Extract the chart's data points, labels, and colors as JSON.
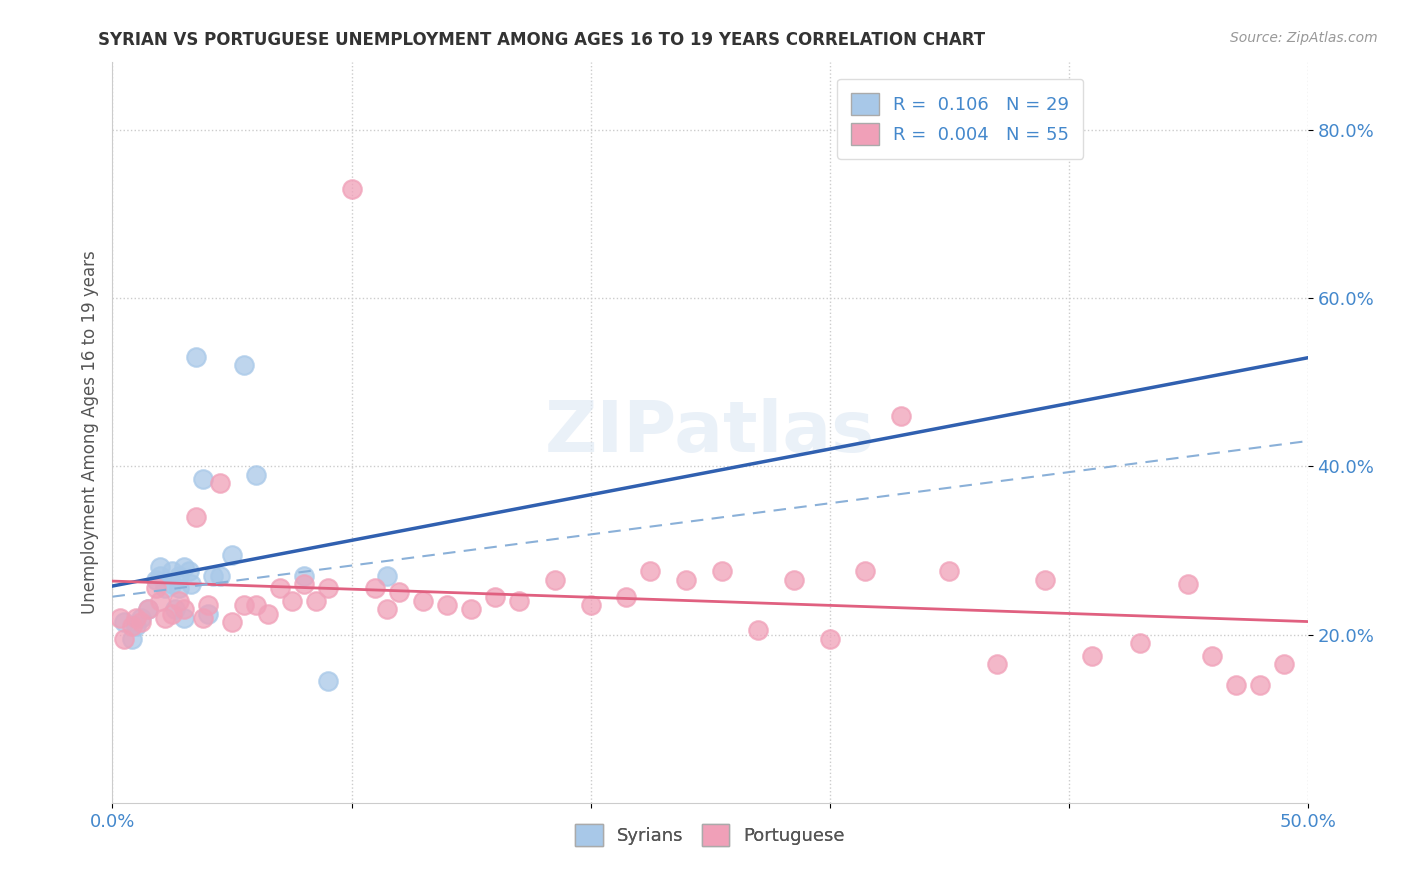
{
  "title": "SYRIAN VS PORTUGUESE UNEMPLOYMENT AMONG AGES 16 TO 19 YEARS CORRELATION CHART",
  "source": "Source: ZipAtlas.com",
  "ylabel": "Unemployment Among Ages 16 to 19 years",
  "xlim": [
    0.0,
    0.5
  ],
  "ylim": [
    0.0,
    0.88
  ],
  "legend_r_syrian": "0.106",
  "legend_n_syrian": "29",
  "legend_r_portuguese": "0.004",
  "legend_n_portuguese": "55",
  "syrian_color": "#a8c8e8",
  "portuguese_color": "#f0a0b8",
  "syrian_line_color": "#3060b0",
  "portuguese_line_color": "#e06080",
  "watermark": "ZIPatlas",
  "syrian_x": [
    0.005,
    0.008,
    0.01,
    0.012,
    0.015,
    0.018,
    0.02,
    0.02,
    0.022,
    0.025,
    0.025,
    0.026,
    0.028,
    0.028,
    0.03,
    0.03,
    0.032,
    0.033,
    0.035,
    0.038,
    0.04,
    0.042,
    0.045,
    0.05,
    0.055,
    0.06,
    0.08,
    0.09,
    0.115
  ],
  "syrian_y": [
    0.215,
    0.195,
    0.21,
    0.22,
    0.23,
    0.265,
    0.27,
    0.28,
    0.255,
    0.26,
    0.275,
    0.23,
    0.255,
    0.27,
    0.22,
    0.28,
    0.275,
    0.26,
    0.53,
    0.385,
    0.225,
    0.27,
    0.27,
    0.295,
    0.52,
    0.39,
    0.27,
    0.145,
    0.27
  ],
  "portuguese_x": [
    0.003,
    0.005,
    0.008,
    0.01,
    0.012,
    0.015,
    0.018,
    0.02,
    0.022,
    0.025,
    0.028,
    0.03,
    0.035,
    0.038,
    0.04,
    0.045,
    0.05,
    0.055,
    0.06,
    0.065,
    0.07,
    0.075,
    0.08,
    0.085,
    0.09,
    0.1,
    0.11,
    0.115,
    0.12,
    0.13,
    0.14,
    0.15,
    0.16,
    0.17,
    0.185,
    0.2,
    0.215,
    0.225,
    0.24,
    0.255,
    0.27,
    0.285,
    0.3,
    0.315,
    0.33,
    0.35,
    0.37,
    0.39,
    0.41,
    0.43,
    0.45,
    0.46,
    0.47,
    0.48,
    0.49
  ],
  "portuguese_y": [
    0.22,
    0.195,
    0.21,
    0.22,
    0.215,
    0.23,
    0.255,
    0.24,
    0.22,
    0.225,
    0.24,
    0.23,
    0.34,
    0.22,
    0.235,
    0.38,
    0.215,
    0.235,
    0.235,
    0.225,
    0.255,
    0.24,
    0.26,
    0.24,
    0.255,
    0.73,
    0.255,
    0.23,
    0.25,
    0.24,
    0.235,
    0.23,
    0.245,
    0.24,
    0.265,
    0.235,
    0.245,
    0.275,
    0.265,
    0.275,
    0.205,
    0.265,
    0.195,
    0.275,
    0.46,
    0.275,
    0.165,
    0.265,
    0.175,
    0.19,
    0.26,
    0.175,
    0.14,
    0.14,
    0.165
  ]
}
